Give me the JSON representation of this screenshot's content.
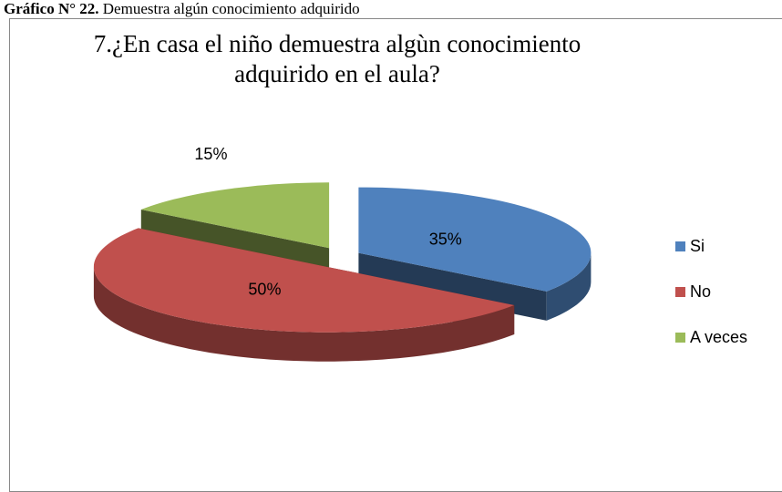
{
  "caption_label": "Gráfico N° 22.",
  "caption": "Demuestra algún conocimiento adquirido",
  "chart_data": {
    "type": "pie3d",
    "title": "7.¿En casa el niño demuestra algùn conocimiento adquirido en el aula?",
    "categories": [
      "Si",
      "No",
      "A veces"
    ],
    "values": [
      35,
      50,
      15
    ],
    "value_labels": [
      "35%",
      "50%",
      "15%"
    ],
    "colors": [
      "#4f81bd",
      "#c0504d",
      "#9bbb59"
    ],
    "legend": "right"
  }
}
